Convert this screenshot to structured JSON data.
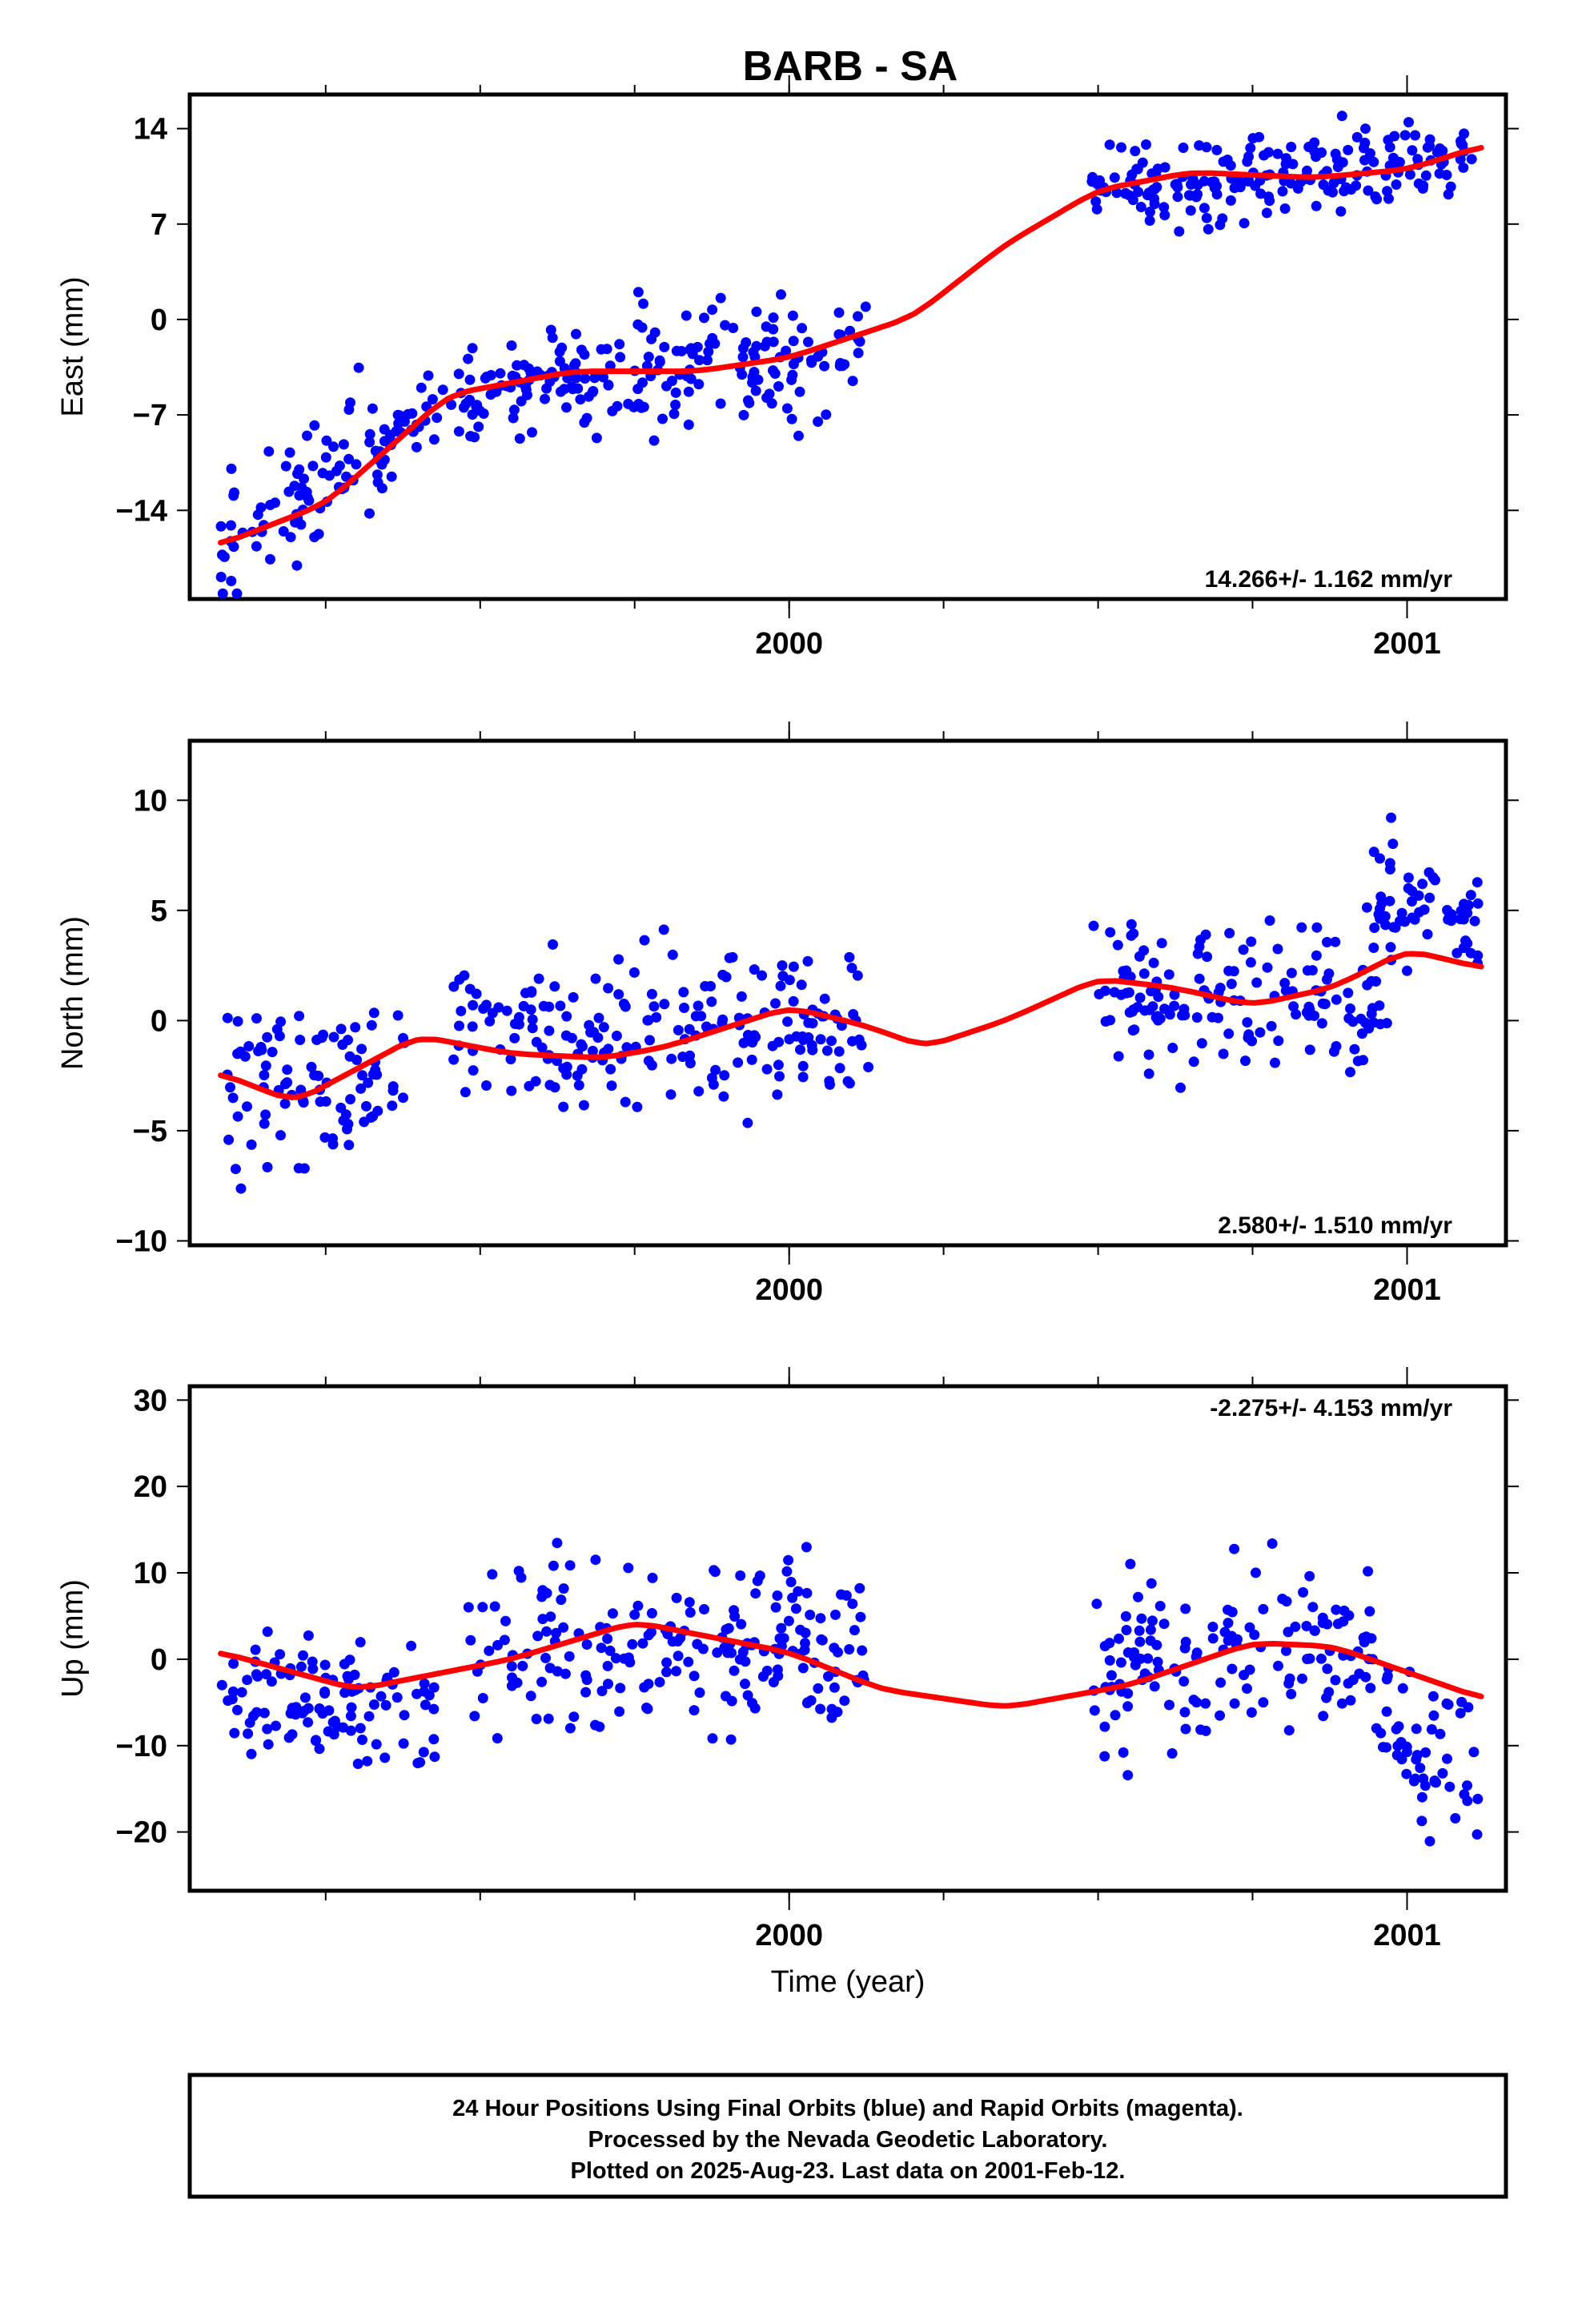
{
  "figure": {
    "title": "BARB - SA",
    "xlabel": "Time (year)",
    "footer": [
      "24 Hour Positions Using Final Orbits (blue) and Rapid Orbits (magenta).",
      "Processed by the Nevada Geodetic Laboratory.",
      "Plotted on 2025-Aug-23. Last data on 2001-Feb-12."
    ],
    "colors": {
      "points": "#0000ff",
      "model": "#ff0000",
      "frame": "#000000"
    }
  },
  "chart_data": [
    {
      "type": "scatter",
      "ylabel": "East (mm)",
      "rate": "14.266+/- 1.162 mm/yr",
      "rate_position": "bottom-right",
      "xlim": [
        1999.03,
        2001.16
      ],
      "ylim": [
        -20.5,
        16.5
      ],
      "xticks": [
        2000,
        2001
      ],
      "xticklabels": [
        "2000",
        "2001"
      ],
      "yticks": [
        14,
        7,
        0,
        -7,
        -14
      ],
      "yticklabels": [
        "14",
        "7",
        "0",
        "−7",
        "−14"
      ],
      "trend": {
        "x": [
          1999.08,
          1999.25,
          1999.45,
          1999.65,
          1999.85,
          2000.0,
          2000.2,
          2000.35,
          2000.5,
          2000.65,
          2000.85,
          2001.0,
          2001.12
        ],
        "y": [
          -16.5,
          -13.5,
          -5.5,
          -3.8,
          -3.8,
          -2.8,
          0.2,
          5.5,
          9.5,
          10.8,
          10.4,
          11.0,
          12.7
        ]
      },
      "segments": [
        {
          "x0": 1999.08,
          "x1": 1999.35,
          "y0": -16.5,
          "y1": -9,
          "scatter": 3.2
        },
        {
          "x0": 1999.35,
          "x1": 1999.65,
          "y0": -8,
          "y1": -3.5,
          "scatter": 2.3
        },
        {
          "x0": 1999.65,
          "x1": 2000.13,
          "y0": -4,
          "y1": -2,
          "scatter": 3.5
        },
        {
          "x0": 2000.49,
          "x1": 2001.12,
          "y0": 9.5,
          "y1": 12,
          "scatter": 2.2
        }
      ]
    },
    {
      "type": "scatter",
      "ylabel": "North (mm)",
      "rate": "2.580+/- 1.510 mm/yr",
      "rate_position": "bottom-right",
      "xlim": [
        1999.03,
        2001.16
      ],
      "ylim": [
        -10.2,
        12.7
      ],
      "xticks": [
        2000,
        2001
      ],
      "xticklabels": [
        "2000",
        "2001"
      ],
      "yticks": [
        10,
        5,
        0,
        -5,
        -10
      ],
      "yticklabels": [
        "10",
        "5",
        "0",
        "−5",
        "−10"
      ],
      "trend": {
        "x": [
          1999.08,
          1999.2,
          1999.4,
          1999.55,
          1999.7,
          1999.8,
          2000.0,
          2000.12,
          2000.22,
          2000.35,
          2000.5,
          2000.62,
          2000.75,
          2000.88,
          2001.0,
          2001.12
        ],
        "y": [
          -2.4,
          -3.7,
          -0.7,
          -1.5,
          -1.7,
          -1.2,
          0.6,
          -0.2,
          -1.2,
          0.0,
          1.9,
          1.5,
          0.7,
          1.5,
          3.2,
          2.4
        ]
      },
      "segments": [
        {
          "x0": 1999.08,
          "x1": 1999.38,
          "y0": -3.5,
          "y1": -2.5,
          "scatter": 2.8
        },
        {
          "x0": 1999.45,
          "x1": 2000.13,
          "y0": -0.5,
          "y1": -0.5,
          "scatter": 2.5
        },
        {
          "x0": 2000.49,
          "x1": 2000.97,
          "y0": 1.5,
          "y1": 0.5,
          "scatter": 2.2
        },
        {
          "x0": 2000.92,
          "x1": 2001.12,
          "y0": 6,
          "y1": 4.5,
          "scatter": 1.8
        }
      ]
    },
    {
      "type": "scatter",
      "ylabel": "Up (mm)",
      "rate": "-2.275+/- 4.153 mm/yr",
      "rate_position": "top-right",
      "xlim": [
        1999.03,
        2001.16
      ],
      "ylim": [
        -26.8,
        31.6
      ],
      "xticks": [
        2000,
        2001
      ],
      "xticklabels": [
        "2000",
        "2001"
      ],
      "yticks": [
        30,
        20,
        10,
        0,
        -10,
        -20
      ],
      "yticklabels": [
        "30",
        "20",
        "10",
        "0",
        "−10",
        "−20"
      ],
      "trend": {
        "x": [
          1999.08,
          1999.3,
          1999.55,
          1999.75,
          2000.0,
          2000.15,
          2000.35,
          2000.55,
          2000.75,
          2000.88,
          2001.0,
          2001.12
        ],
        "y": [
          0.8,
          -3.5,
          0.0,
          4.3,
          0.8,
          -3.5,
          -5.6,
          -3.0,
          1.9,
          1.5,
          -1.5,
          -4.5
        ]
      },
      "segments": [
        {
          "x0": 1999.08,
          "x1": 1999.43,
          "y0": -5,
          "y1": -6,
          "scatter": 5
        },
        {
          "x0": 1999.48,
          "x1": 2000.13,
          "y0": 2,
          "y1": 2,
          "scatter": 7
        },
        {
          "x0": 2000.49,
          "x1": 2000.95,
          "y0": -2,
          "y1": 2,
          "scatter": 6.5
        },
        {
          "x0": 2000.95,
          "x1": 2001.12,
          "y0": -8,
          "y1": -12,
          "scatter": 6
        }
      ]
    }
  ]
}
